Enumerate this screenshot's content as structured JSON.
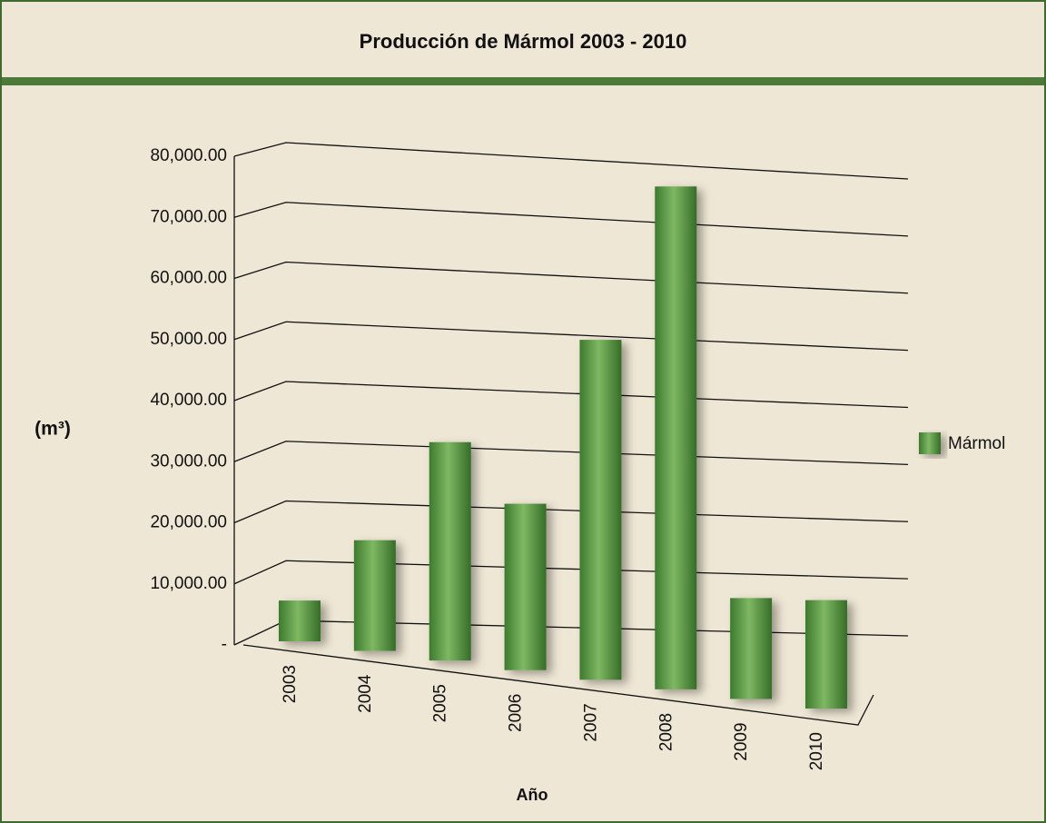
{
  "chart_data": {
    "type": "bar3d",
    "title": "Producción de Mármol 2003 - 2010",
    "y_label": "(m³)",
    "x_label": "Año",
    "categories": [
      "2003",
      "2004",
      "2005",
      "2006",
      "2007",
      "2008",
      "2009",
      "2010"
    ],
    "series": [
      {
        "name": "Mármol",
        "color": "#5a9a45",
        "values": [
          4000,
          14500,
          31500,
          21500,
          50000,
          77000,
          6500,
          6500
        ]
      }
    ],
    "ylim": [
      0,
      80000
    ],
    "yticks": [
      {
        "value": 0,
        "label": "-"
      },
      {
        "value": 10000,
        "label": "10,000.00"
      },
      {
        "value": 20000,
        "label": "20,000.00"
      },
      {
        "value": 30000,
        "label": "30,000.00"
      },
      {
        "value": 40000,
        "label": "40,000.00"
      },
      {
        "value": 50000,
        "label": "50,000.00"
      },
      {
        "value": 60000,
        "label": "60,000.00"
      },
      {
        "value": 70000,
        "label": "70,000.00"
      },
      {
        "value": 80000,
        "label": "80,000.00"
      }
    ],
    "grid": true,
    "legend": "right"
  }
}
